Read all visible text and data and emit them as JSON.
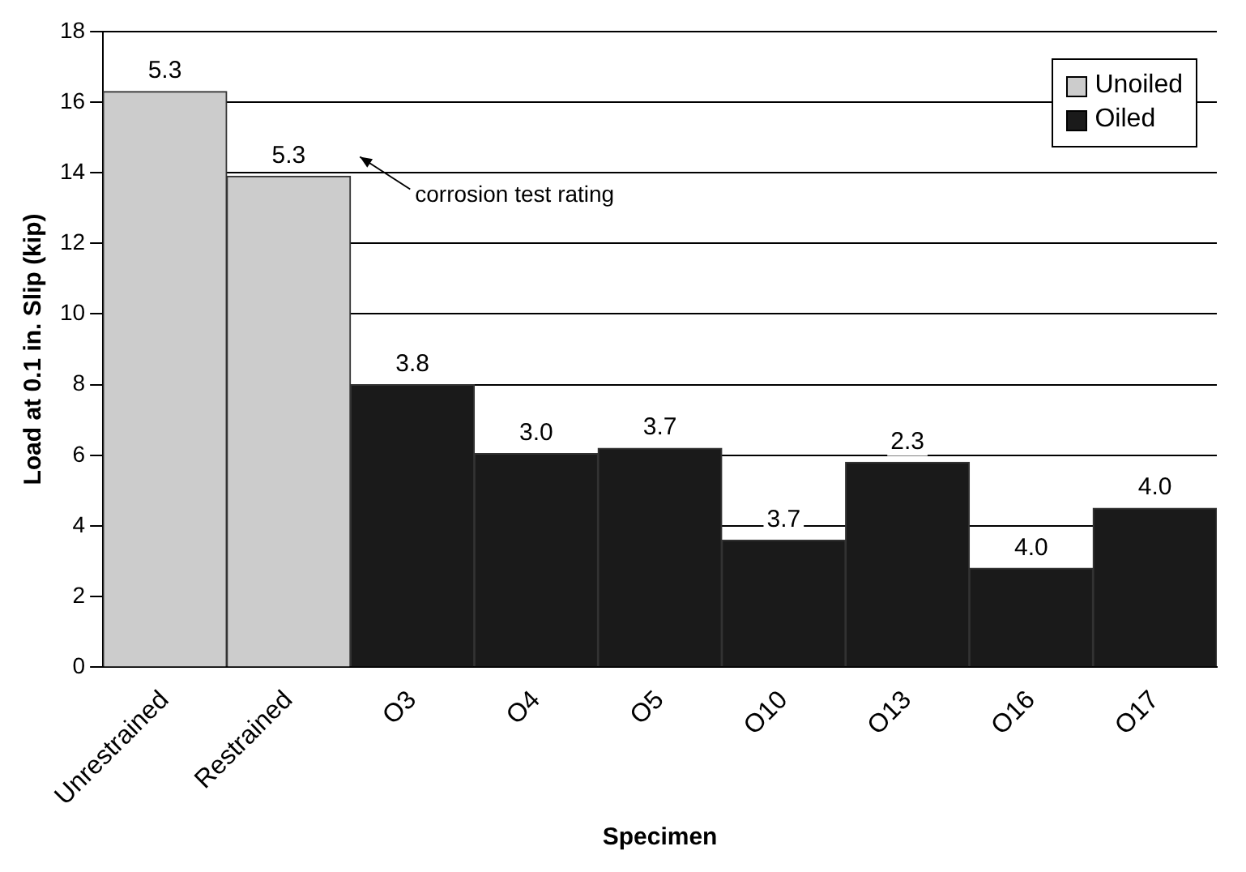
{
  "chart_data": {
    "type": "bar",
    "xlabel": "Specimen",
    "ylabel": "Load at 0.1 in. Slip (kip)",
    "categories": [
      "Unrestrained",
      "Restrained",
      "O3",
      "O4",
      "O5",
      "O10",
      "O13",
      "O16",
      "O17"
    ],
    "series": [
      {
        "name": "Unoiled",
        "color": "#cccccc",
        "values": [
          16.3,
          13.9,
          null,
          null,
          null,
          null,
          null,
          null,
          null
        ]
      },
      {
        "name": "Oiled",
        "color": "#1a1a1a",
        "values": [
          null,
          null,
          8.0,
          6.05,
          6.2,
          3.6,
          5.8,
          2.8,
          4.5
        ]
      }
    ],
    "ylim": [
      0,
      18
    ],
    "yticks": [
      0,
      2,
      4,
      6,
      8,
      10,
      12,
      14,
      16,
      18
    ],
    "grid": "y",
    "legend": "top right",
    "annotations": [
      {
        "text": "5.3",
        "x": "Unrestrained",
        "y": 16.3
      },
      {
        "text": "5.3",
        "x": "Restrained",
        "y": 13.9
      },
      "corrosion test rating",
      {
        "text": "3.8",
        "x": "O3",
        "y": 8.0
      },
      {
        "text": "3.0",
        "x": "O4",
        "y": 6.05
      },
      {
        "text": "3.7",
        "x": "O5",
        "y": 6.2
      },
      {
        "text": "3.7",
        "x": "O10",
        "y": 3.6
      },
      {
        "text": "2.3",
        "x": "O13",
        "y": 5.8
      },
      {
        "text": "4.0",
        "x": "O16",
        "y": 2.8
      },
      {
        "text": "4.0",
        "x": "O17",
        "y": 4.5
      }
    ]
  }
}
